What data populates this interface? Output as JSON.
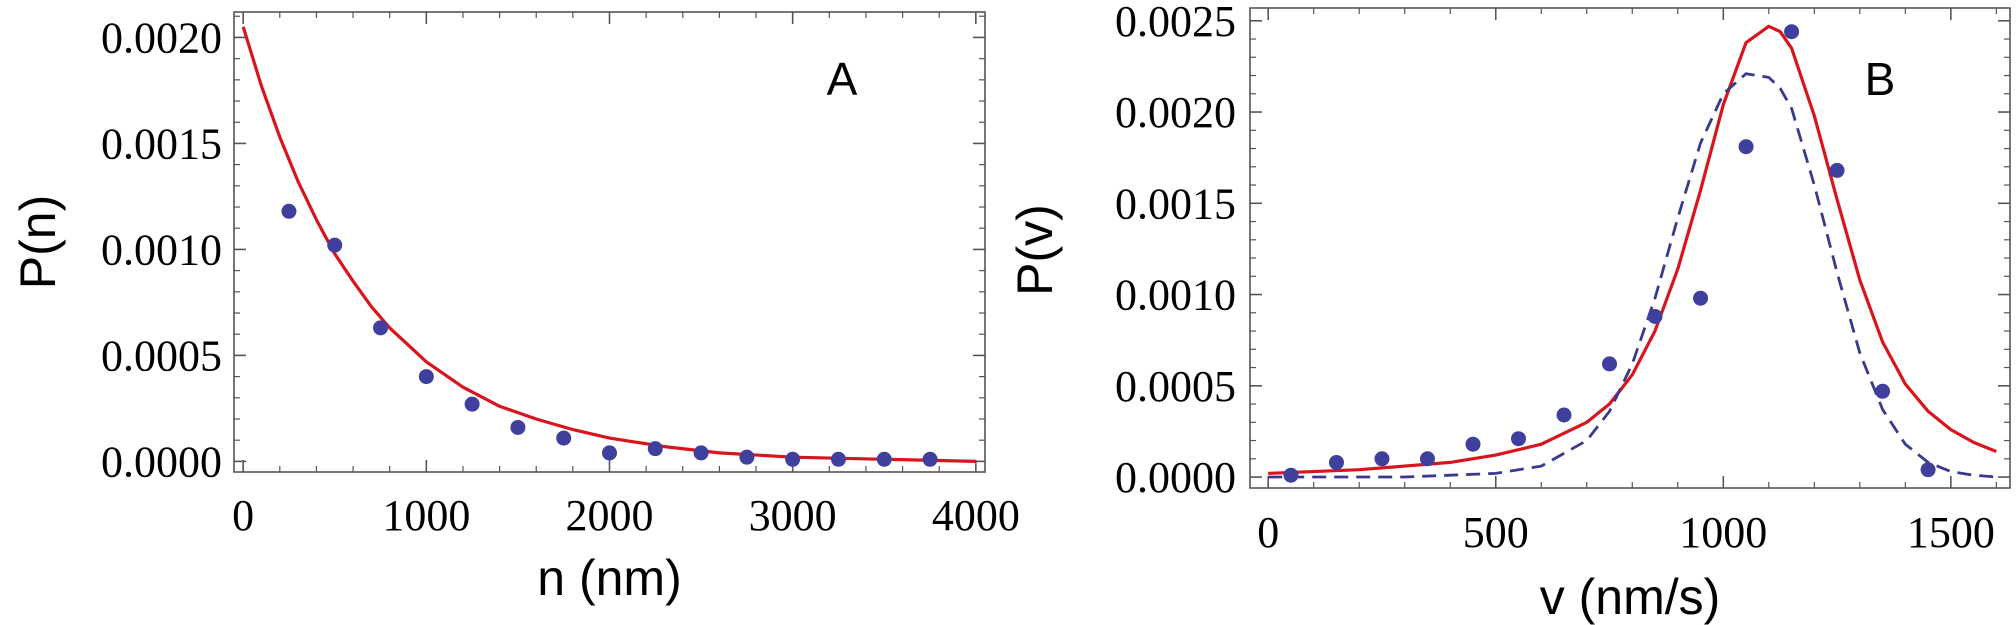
{
  "chart_data": [
    {
      "type": "scatter",
      "panel_label": "A",
      "title": "",
      "xlabel": "n (nm)",
      "ylabel": "P(n)",
      "xlim": [
        -50,
        4050
      ],
      "ylim": [
        -5e-05,
        0.00212
      ],
      "x_ticks": [
        0,
        1000,
        2000,
        3000,
        4000
      ],
      "x_tick_labels": [
        "0",
        "1000",
        "2000",
        "3000",
        "4000"
      ],
      "y_ticks": [
        0,
        0.0005,
        0.001,
        0.0015,
        0.002
      ],
      "y_tick_labels": [
        "0.0000",
        "0.0005",
        "0.0010",
        "0.0015",
        "0.0020"
      ],
      "grid": false,
      "series": [
        {
          "kind": "points",
          "color": "#3f3f9e",
          "x": [
            250,
            500,
            750,
            1000,
            1250,
            1500,
            1750,
            2000,
            2250,
            2500,
            2750,
            3000,
            3250,
            3500,
            3750
          ],
          "y": [
            0.00118,
            0.00102,
            0.00063,
            0.0004,
            0.00027,
            0.00016,
            0.00011,
            4e-05,
            6e-05,
            4e-05,
            2e-05,
            1e-05,
            1e-05,
            1e-05,
            1e-05
          ]
        },
        {
          "kind": "line",
          "color": "#d8141c",
          "x": [
            0,
            100,
            200,
            300,
            400,
            500,
            600,
            700,
            800,
            900,
            1000,
            1200,
            1400,
            1600,
            1800,
            2000,
            2300,
            2600,
            3000,
            3500,
            4000
          ],
          "y": [
            0.00205,
            0.00177,
            0.00153,
            0.00132,
            0.00114,
            0.00098,
            0.00085,
            0.00073,
            0.00063,
            0.00055,
            0.00047,
            0.00035,
            0.00026,
            0.0002,
            0.00015,
            0.00011,
            7e-05,
            4e-05,
            2e-05,
            1e-05,
            0.0
          ]
        }
      ]
    },
    {
      "type": "scatter",
      "panel_label": "B",
      "title": "",
      "xlabel": "v (nm/s)",
      "ylabel": "P(v)",
      "xlim": [
        -40,
        1630
      ],
      "ylim": [
        -6e-05,
        0.00257
      ],
      "x_ticks": [
        0,
        500,
        1000,
        1500
      ],
      "x_tick_labels": [
        "0",
        "500",
        "1000",
        "1500"
      ],
      "y_ticks": [
        0,
        0.0005,
        0.001,
        0.0015,
        0.002,
        0.0025
      ],
      "y_tick_labels": [
        "0.0000",
        "0.0005",
        "0.0010",
        "0.0015",
        "0.0020",
        "0.0025"
      ],
      "grid": false,
      "series": [
        {
          "kind": "points",
          "color": "#3f3f9e",
          "x": [
            50,
            150,
            250,
            350,
            450,
            550,
            650,
            750,
            850,
            950,
            1050,
            1150,
            1250,
            1350,
            1450
          ],
          "y": [
            1e-05,
            8e-05,
            0.0001,
            0.0001,
            0.00018,
            0.00021,
            0.00034,
            0.00062,
            0.00088,
            0.00098,
            0.00181,
            0.00244,
            0.00168,
            0.00047,
            4e-05
          ]
        },
        {
          "kind": "line",
          "color": "#d8141c",
          "x": [
            0,
            200,
            400,
            500,
            600,
            700,
            750,
            800,
            850,
            900,
            950,
            1000,
            1050,
            1100,
            1125,
            1150,
            1200,
            1250,
            1300,
            1350,
            1400,
            1450,
            1500,
            1550,
            1600
          ],
          "y": [
            2e-05,
            4e-05,
            8e-05,
            0.00012,
            0.00018,
            0.0003,
            0.0004,
            0.00056,
            0.0008,
            0.00114,
            0.00157,
            0.00204,
            0.00238,
            0.00247,
            0.00244,
            0.00235,
            0.00198,
            0.00152,
            0.00108,
            0.00074,
            0.00051,
            0.00036,
            0.00026,
            0.00019,
            0.00014
          ]
        },
        {
          "kind": "dashed-line",
          "color": "#3a3a8c",
          "x": [
            0,
            300,
            500,
            600,
            700,
            750,
            800,
            850,
            900,
            950,
            1000,
            1050,
            1100,
            1125,
            1150,
            1200,
            1250,
            1300,
            1350,
            1400,
            1450,
            1500,
            1550,
            1600
          ],
          "y": [
            0.0,
            0.0,
            2e-05,
            6e-05,
            0.0002,
            0.00036,
            0.00062,
            0.00098,
            0.00142,
            0.00183,
            0.0021,
            0.00221,
            0.00219,
            0.00213,
            0.00202,
            0.0016,
            0.00112,
            0.00068,
            0.00037,
            0.00018,
            8e-05,
            3e-05,
            1e-05,
            0.0
          ]
        }
      ]
    }
  ]
}
